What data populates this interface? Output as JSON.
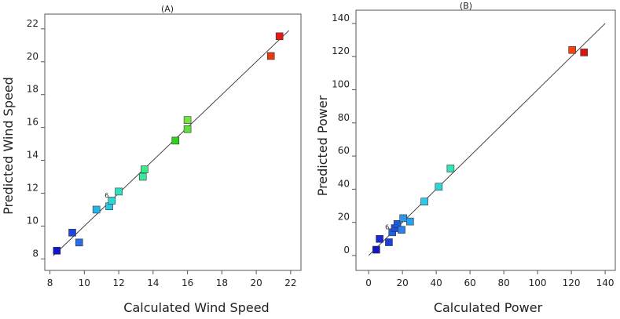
{
  "chart_data": [
    {
      "type": "scatter",
      "title": "(A)",
      "xlabel": "Calculated Wind Speed",
      "ylabel": "Predicted Wind Speed",
      "xlim": [
        7.7,
        22.6
      ],
      "ylim": [
        7.3,
        22.9
      ],
      "xticks": [
        8,
        10,
        12,
        14,
        16,
        18,
        20,
        22
      ],
      "yticks": [
        8,
        10,
        12,
        14,
        16,
        18,
        20,
        22
      ],
      "line": [
        [
          8.2,
          8.2
        ],
        [
          21.9,
          21.9
        ]
      ],
      "points": [
        {
          "x": 8.4,
          "y": 8.5,
          "color": "#1515c8"
        },
        {
          "x": 9.3,
          "y": 9.6,
          "color": "#1e45e0"
        },
        {
          "x": 9.7,
          "y": 9.0,
          "color": "#2a6be8"
        },
        {
          "x": 10.7,
          "y": 11.0,
          "color": "#25b5e5"
        },
        {
          "x": 11.45,
          "y": 11.2,
          "color": "#2ac9e2"
        },
        {
          "x": 11.6,
          "y": 11.55,
          "color": "#2fd7d2",
          "label": "6"
        },
        {
          "x": 12.0,
          "y": 12.1,
          "color": "#2fe0bf"
        },
        {
          "x": 13.4,
          "y": 13.0,
          "color": "#3be89a"
        },
        {
          "x": 13.5,
          "y": 13.45,
          "color": "#3ee98b"
        },
        {
          "x": 15.3,
          "y": 15.2,
          "color": "#2ed21e"
        },
        {
          "x": 16.0,
          "y": 15.9,
          "color": "#5ee03a"
        },
        {
          "x": 16.0,
          "y": 16.45,
          "color": "#74e33a"
        },
        {
          "x": 20.85,
          "y": 20.35,
          "color": "#e8380f"
        },
        {
          "x": 21.35,
          "y": 21.55,
          "color": "#e41a14"
        }
      ]
    },
    {
      "type": "scatter",
      "title": "(B)",
      "xlabel": "Calculated Power",
      "ylabel": "Predicted Power",
      "xlim": [
        -7.5,
        146
      ],
      "ylim": [
        -9,
        148
      ],
      "xticks": [
        0,
        20,
        40,
        60,
        80,
        100,
        120,
        140
      ],
      "yticks": [
        0,
        20,
        40,
        60,
        80,
        100,
        120,
        140
      ],
      "line": [
        [
          0,
          0
        ],
        [
          140,
          140
        ]
      ],
      "points": [
        {
          "x": 4.5,
          "y": 3.5,
          "color": "#1515c0"
        },
        {
          "x": 6.5,
          "y": 10.0,
          "color": "#1a28d8"
        },
        {
          "x": 12.0,
          "y": 8.0,
          "color": "#1e3fdf"
        },
        {
          "x": 14.0,
          "y": 14.0,
          "color": "#2060e8",
          "label": "6"
        },
        {
          "x": 15.5,
          "y": 16.5,
          "color": "#1f4fe2"
        },
        {
          "x": 17.0,
          "y": 19.0,
          "color": "#1a5ad8"
        },
        {
          "x": 19.5,
          "y": 15.5,
          "color": "#2a80ec"
        },
        {
          "x": 20.5,
          "y": 22.5,
          "color": "#2a96ec"
        },
        {
          "x": 24.5,
          "y": 20.5,
          "color": "#2aa0ee"
        },
        {
          "x": 33.0,
          "y": 32.5,
          "color": "#2ec8ea"
        },
        {
          "x": 41.5,
          "y": 41.5,
          "color": "#2fd6d6"
        },
        {
          "x": 48.5,
          "y": 52.5,
          "color": "#36e2b8"
        },
        {
          "x": 120.5,
          "y": 124.0,
          "color": "#f24410"
        },
        {
          "x": 127.5,
          "y": 122.5,
          "color": "#d8160c"
        }
      ]
    }
  ]
}
